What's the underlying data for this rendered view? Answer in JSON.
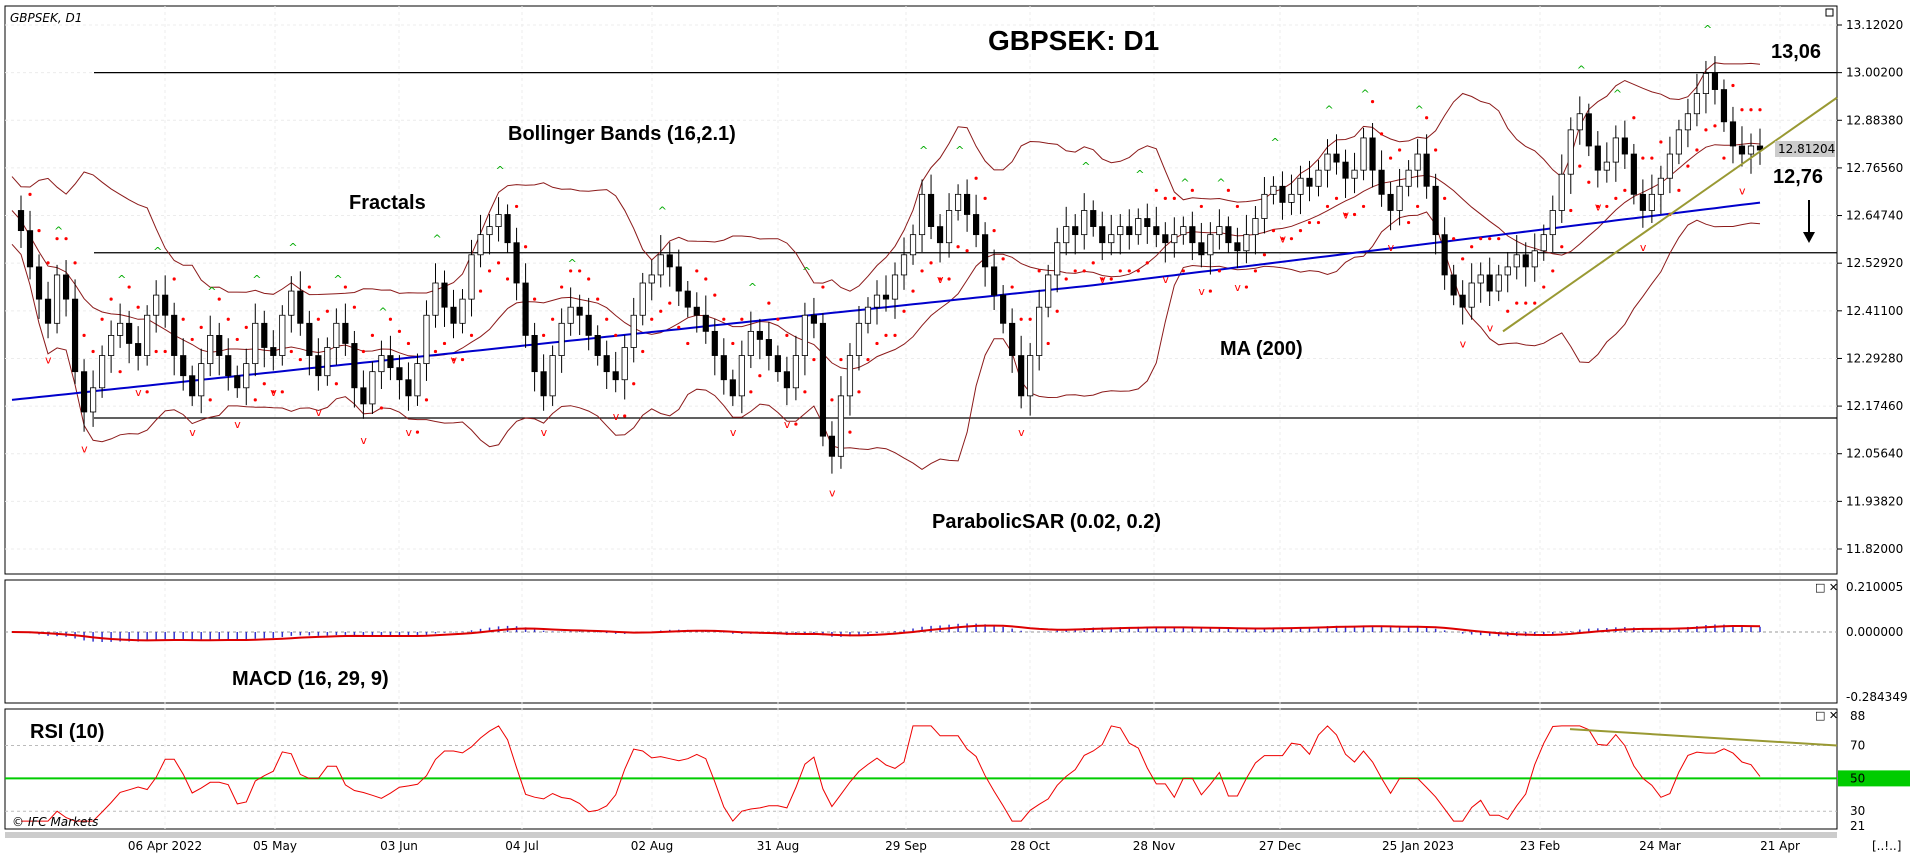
{
  "symbol_label": "GBPSEK, D1",
  "chart_title": "GBPSEK: D1",
  "copyright": "© IFC Markets",
  "corner_label": "[..!..]",
  "annotations": {
    "bollinger": "Bollinger Bands (16,2.1)",
    "fractals": "Fractals",
    "ma": "MA (200)",
    "sar": "ParabolicSAR (0.02, 0.2)",
    "macd": "MACD (16, 29, 9)",
    "rsi": "RSI (10)",
    "target_high": "13,06",
    "target_low": "12,76"
  },
  "current_price": "12.81204",
  "colors": {
    "candle_up": "#ffffff",
    "candle_down": "#000000",
    "bollinger": "#8b1a1a",
    "ma200": "#0000cc",
    "sar": "#ff0000",
    "fractal_up": "#00aa00",
    "fractal_down": "#ff0000",
    "trendline": "#999933",
    "macd_hist": "#3333cc",
    "macd_signal": "#dd0000",
    "rsi_line": "#ee0000",
    "rsi_mid": "#00cc00"
  },
  "chart_data": {
    "type": "candlestick",
    "title": "GBPSEK: D1",
    "price_axis": {
      "ticks": [
        "13.12020",
        "13.00200",
        "12.88380",
        "12.76560",
        "12.64740",
        "12.52920",
        "12.41100",
        "12.29280",
        "12.17460",
        "12.05640",
        "11.93820",
        "11.82000"
      ],
      "ylim": [
        11.82,
        13.1202
      ]
    },
    "x_ticks": [
      "06 Apr 2022",
      "05 May",
      "03 Jun",
      "04 Jul",
      "02 Aug",
      "31 Aug",
      "29 Sep",
      "28 Oct",
      "28 Nov",
      "27 Dec",
      "25 Jan 2023",
      "23 Feb",
      "24 Mar",
      "21 Apr"
    ],
    "horizontal_levels": [
      13.002,
      12.555,
      12.145
    ],
    "trendline": {
      "from": [
        "23 Feb",
        12.36
      ],
      "to": [
        "21 Apr",
        12.94
      ]
    },
    "close_series": [
      12.66,
      12.61,
      12.52,
      12.44,
      12.38,
      12.5,
      12.44,
      12.26,
      12.16,
      12.22,
      12.3,
      12.35,
      12.38,
      12.33,
      12.3,
      12.4,
      12.45,
      12.4,
      12.3,
      12.25,
      12.2,
      12.28,
      12.35,
      12.3,
      12.25,
      12.22,
      12.28,
      12.38,
      12.32,
      12.3,
      12.4,
      12.46,
      12.38,
      12.3,
      12.25,
      12.32,
      12.38,
      12.33,
      12.22,
      12.18,
      12.26,
      12.3,
      12.27,
      12.24,
      12.2,
      12.28,
      12.4,
      12.48,
      12.42,
      12.38,
      12.44,
      12.55,
      12.6,
      12.62,
      12.65,
      12.58,
      12.48,
      12.35,
      12.26,
      12.2,
      12.3,
      12.38,
      12.42,
      12.4,
      12.35,
      12.3,
      12.26,
      12.24,
      12.32,
      12.4,
      12.48,
      12.5,
      12.55,
      12.52,
      12.46,
      12.42,
      12.4,
      12.36,
      12.3,
      12.24,
      12.2,
      12.3,
      12.36,
      12.34,
      12.3,
      12.26,
      12.22,
      12.3,
      12.4,
      12.38,
      12.1,
      12.05,
      12.2,
      12.3,
      12.38,
      12.42,
      12.45,
      12.44,
      12.5,
      12.55,
      12.6,
      12.7,
      12.62,
      12.58,
      12.66,
      12.7,
      12.65,
      12.6,
      12.52,
      12.45,
      12.38,
      12.3,
      12.2,
      12.3,
      12.42,
      12.5,
      12.58,
      12.62,
      12.6,
      12.66,
      12.62,
      12.58,
      12.6,
      12.62,
      12.6,
      12.64,
      12.62,
      12.6,
      12.58,
      12.6,
      12.62,
      12.58,
      12.55,
      12.6,
      12.62,
      12.58,
      12.56,
      12.6,
      12.64,
      12.7,
      12.72,
      12.68,
      12.7,
      12.74,
      12.72,
      12.76,
      12.8,
      12.78,
      12.74,
      12.76,
      12.84,
      12.76,
      12.7,
      12.66,
      12.72,
      12.76,
      12.8,
      12.72,
      12.6,
      12.5,
      12.45,
      12.42,
      12.48,
      12.5,
      12.46,
      12.5,
      12.52,
      12.55,
      12.52,
      12.56,
      12.6,
      12.66,
      12.75,
      12.86,
      12.9,
      12.82,
      12.76,
      12.78,
      12.84,
      12.8,
      12.7,
      12.66,
      12.7,
      12.74,
      12.8,
      12.86,
      12.9,
      12.95,
      13.0,
      12.96,
      12.88,
      12.82,
      12.8,
      12.82,
      12.81
    ]
  }
}
